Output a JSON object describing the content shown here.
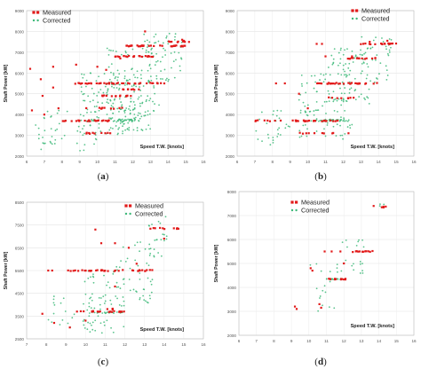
{
  "panels": [
    {
      "label_open": "(",
      "label_letter": "a",
      "label_close": ")",
      "chart_data": {
        "type": "scatter",
        "ylabel": "Shaft Power [kW]",
        "xlabel": "Speed T.W. [knots]",
        "xlim": [
          6,
          16
        ],
        "ylim": [
          2000,
          9000
        ],
        "xticks": [
          "6",
          "7",
          "8",
          "9",
          "10",
          "11",
          "12",
          "13",
          "14",
          "15",
          "16"
        ],
        "yticks": [
          "2000",
          "3000",
          "4000",
          "5000",
          "6000",
          "7000",
          "8000",
          "9000"
        ],
        "legend": [
          "Measured",
          "Corrected"
        ],
        "legend_position": "top-left",
        "series": [
          {
            "name": "Measured",
            "color": "#e21a1a",
            "bands": [
              [
                8.0,
                11.0,
                3700,
                22
              ],
              [
                9.2,
                11.0,
                3100,
                10
              ],
              [
                8.5,
                13.8,
                5500,
                40
              ],
              [
                10.2,
                12.2,
                4900,
                14
              ],
              [
                9.0,
                11.5,
                4300,
                10
              ],
              [
                11.0,
                13.6,
                6800,
                22
              ],
              [
                11.6,
                15.0,
                7300,
                32
              ],
              [
                13.8,
                15.2,
                7500,
                8
              ],
              [
                11.2,
                13.2,
                5200,
                8
              ]
            ],
            "points": [
              [
                6.2,
                6200
              ],
              [
                6.3,
                4200
              ],
              [
                6.9,
                4900
              ],
              [
                7.5,
                5300
              ],
              [
                7.0,
                4000
              ],
              [
                6.8,
                5700
              ],
              [
                7.5,
                6300
              ],
              [
                8.8,
                6400
              ],
              [
                10.0,
                6300
              ],
              [
                10.5,
                6150
              ],
              [
                11.3,
                6700
              ],
              [
                12.7,
                8000
              ],
              [
                14.8,
                7600
              ],
              [
                14.9,
                7550
              ],
              [
                7.8,
                4300
              ]
            ]
          },
          {
            "name": "Corrected",
            "color": "#3cb878",
            "bands": [
              [
                9.2,
                12.2,
                3700,
                25
              ],
              [
                11.2,
                12.2,
                3750,
                18
              ]
            ],
            "clouds": [
              [
                6.5,
                10.0,
                2200,
                4200,
                50
              ],
              [
                9.0,
                12.5,
                3000,
                6000,
                120
              ],
              [
                10.5,
                13.5,
                4000,
                7200,
                100
              ],
              [
                12.5,
                14.8,
                5500,
                7900,
                60
              ],
              [
                11.5,
                13.0,
                3200,
                5000,
                30
              ]
            ]
          }
        ]
      }
    },
    {
      "label_open": "(",
      "label_letter": "b",
      "label_close": ")",
      "chart_data": {
        "type": "scatter",
        "ylabel": "Shaft Power [kW]",
        "xlabel": "Speed T.W. [knots]",
        "xlim": [
          6,
          16
        ],
        "ylim": [
          2000,
          9000
        ],
        "xticks": [
          "6",
          "7",
          "8",
          "9",
          "10",
          "11",
          "12",
          "13",
          "14",
          "15",
          "16"
        ],
        "yticks": [
          "2000",
          "3000",
          "4000",
          "5000",
          "6000",
          "7000",
          "8000",
          "9000"
        ],
        "legend": [
          "Measured",
          "Corrected"
        ],
        "legend_position": "top-right",
        "series": [
          {
            "name": "Measured",
            "color": "#e21a1a",
            "bands": [
              [
                7.0,
                8.5,
                3700,
                8
              ],
              [
                9.0,
                12.0,
                3700,
                24
              ],
              [
                10.5,
                14.0,
                5500,
                30
              ],
              [
                12.0,
                14.0,
                6700,
                14
              ],
              [
                13.0,
                15.0,
                7400,
                18
              ],
              [
                11.0,
                13.0,
                4800,
                8
              ],
              [
                9.5,
                10.5,
                3100,
                5
              ],
              [
                10.7,
                11.5,
                3100,
                4
              ]
            ],
            "points": [
              [
                8.2,
                5500
              ],
              [
                8.7,
                5500
              ],
              [
                9.5,
                5000
              ],
              [
                10.0,
                4300
              ],
              [
                10.5,
                7400
              ],
              [
                10.8,
                7400
              ],
              [
                11.0,
                6800
              ],
              [
                12.5,
                6800
              ],
              [
                13.5,
                7500
              ],
              [
                14.5,
                7550
              ],
              [
                12.3,
                3100
              ]
            ]
          },
          {
            "name": "Corrected",
            "color": "#3cb878",
            "bands": [
              [
                10.0,
                12.2,
                3700,
                20
              ],
              [
                11.2,
                12.2,
                3750,
                15
              ]
            ],
            "clouds": [
              [
                7.0,
                10.0,
                2500,
                4200,
                30
              ],
              [
                9.5,
                12.5,
                2800,
                6000,
                100
              ],
              [
                11.0,
                13.5,
                4500,
                7200,
                70
              ],
              [
                13.0,
                14.8,
                5500,
                7800,
                40
              ]
            ]
          }
        ]
      }
    },
    {
      "label_open": "(",
      "label_letter": "c",
      "label_close": ")",
      "chart_data": {
        "type": "scatter",
        "ylabel": "Shaft Power [kW]",
        "xlabel": "Speed T.W. [knots]",
        "xlim": [
          7,
          16
        ],
        "ylim": [
          2500,
          8500
        ],
        "xticks": [
          "7",
          "8",
          "9",
          "10",
          "11",
          "12",
          "13",
          "14",
          "15",
          "16"
        ],
        "yticks": [
          "2500",
          "3500",
          "4500",
          "5500",
          "6500",
          "7500",
          "8500"
        ],
        "legend": [
          "Measured",
          "Corrected"
        ],
        "legend_position": "top-right",
        "series": [
          {
            "name": "Measured",
            "color": "#e21a1a",
            "bands": [
              [
                9.0,
                13.5,
                5500,
                35
              ],
              [
                9.5,
                12.0,
                3700,
                20
              ],
              [
                13.3,
                14.8,
                7350,
                10
              ],
              [
                10.8,
                11.4,
                3800,
                4
              ]
            ],
            "points": [
              [
                8.1,
                5500
              ],
              [
                8.3,
                5500
              ],
              [
                7.8,
                3600
              ],
              [
                8.4,
                3200
              ],
              [
                9.2,
                3000
              ],
              [
                10.0,
                3300
              ],
              [
                10.5,
                7300
              ],
              [
                10.8,
                6700
              ],
              [
                11.5,
                6700
              ],
              [
                12.2,
                6500
              ],
              [
                12.6,
                5800
              ],
              [
                14.0,
                6900
              ],
              [
                10.8,
                5500
              ],
              [
                11.5,
                4800
              ]
            ]
          },
          {
            "name": "Corrected",
            "color": "#3cb878",
            "bands": [
              [
                10.0,
                12.0,
                3650,
                20
              ]
            ],
            "clouds": [
              [
                8.0,
                10.5,
                2900,
                4500,
                25
              ],
              [
                9.8,
                12.0,
                2700,
                5500,
                60
              ],
              [
                11.2,
                13.4,
                4000,
                6800,
                45
              ],
              [
                13.0,
                14.2,
                6000,
                7900,
                25
              ]
            ]
          }
        ]
      }
    },
    {
      "label_open": "(",
      "label_letter": "d",
      "label_close": ")",
      "chart_data": {
        "type": "scatter",
        "ylabel": "Shaft Power [kW]",
        "xlabel": "Speed T.W. [knots]",
        "xlim": [
          6,
          16
        ],
        "ylim": [
          2000,
          8000
        ],
        "xticks": [
          "6",
          "7",
          "8",
          "9",
          "10",
          "11",
          "12",
          "13",
          "14",
          "15",
          "16"
        ],
        "yticks": [
          "2000",
          "3000",
          "4000",
          "5000",
          "6000",
          "7000",
          "8000"
        ],
        "legend": [
          "Measured",
          "Corrected"
        ],
        "legend_position": "top-left",
        "series": [
          {
            "name": "Measured",
            "color": "#e21a1a",
            "bands": [
              [
                11.0,
                12.1,
                4350,
                12
              ],
              [
                12.5,
                13.7,
                5500,
                12
              ],
              [
                14.0,
                14.5,
                7350,
                4
              ]
            ],
            "points": [
              [
                9.2,
                3200
              ],
              [
                9.3,
                3100
              ],
              [
                10.1,
                4800
              ],
              [
                10.2,
                4700
              ],
              [
                10.6,
                3300
              ],
              [
                10.7,
                3150
              ],
              [
                10.9,
                5500
              ],
              [
                11.3,
                5500
              ],
              [
                11.8,
                5500
              ],
              [
                12.0,
                5000
              ],
              [
                13.7,
                7400
              ]
            ]
          },
          {
            "name": "Corrected",
            "color": "#3cb878",
            "bands": [
              [
                11.0,
                12.0,
                4350,
                15
              ]
            ],
            "clouds": [
              [
                10.0,
                11.8,
                3000,
                5000,
                18
              ],
              [
                11.5,
                13.2,
                4500,
                6000,
                20
              ],
              [
                14.0,
                14.5,
                7300,
                7500,
                4
              ]
            ]
          }
        ]
      }
    }
  ]
}
